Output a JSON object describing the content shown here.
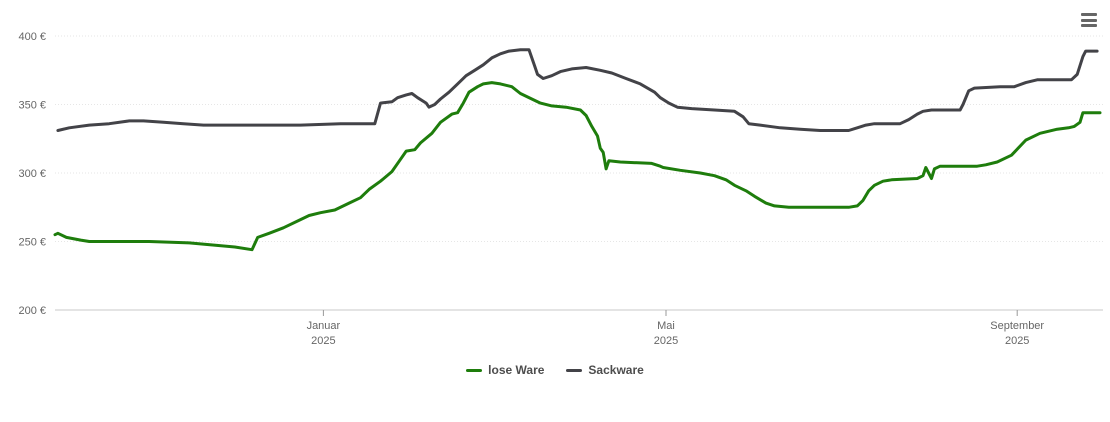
{
  "context_menu": {
    "icon": "hamburger",
    "color": "#666666"
  },
  "chart_data": {
    "type": "line",
    "title": "",
    "x_domain": [
      "2024-09-29",
      "2025-09-30"
    ],
    "ylim": [
      200,
      400
    ],
    "grid": "dotted horizontal gridlines",
    "legend_position": "bottom-center",
    "colors": {
      "grid": "#e6e6e6",
      "axis_line": "#c9c9c9",
      "tick": "#999999",
      "axis_text": "#666666",
      "legend_text": "#4d4d4d"
    },
    "y_ticks": [
      {
        "value": 200,
        "label": "200 €"
      },
      {
        "value": 250,
        "label": "250 €"
      },
      {
        "value": 300,
        "label": "300 €"
      },
      {
        "value": 350,
        "label": "350 €"
      },
      {
        "value": 400,
        "label": "400 €"
      }
    ],
    "x_ticks": [
      {
        "date": "2025-01-01",
        "label": "Januar",
        "year": "2025"
      },
      {
        "date": "2025-05-01",
        "label": "Mai",
        "year": "2025"
      },
      {
        "date": "2025-09-01",
        "label": "September",
        "year": "2025"
      }
    ],
    "series": [
      {
        "name": "lose Ware",
        "color": "#1e7d0c",
        "points": [
          [
            "2024-09-29",
            255
          ],
          [
            "2024-09-30",
            256
          ],
          [
            "2024-10-03",
            253
          ],
          [
            "2024-10-08",
            251
          ],
          [
            "2024-10-11",
            250
          ],
          [
            "2024-11-01",
            250
          ],
          [
            "2024-11-15",
            249
          ],
          [
            "2024-12-01",
            246
          ],
          [
            "2024-12-07",
            244
          ],
          [
            "2024-12-09",
            253
          ],
          [
            "2024-12-13",
            256
          ],
          [
            "2024-12-18",
            260
          ],
          [
            "2024-12-24",
            266
          ],
          [
            "2024-12-27",
            269
          ],
          [
            "2024-12-31",
            271
          ],
          [
            "2025-01-05",
            273
          ],
          [
            "2025-01-10",
            278
          ],
          [
            "2025-01-14",
            282
          ],
          [
            "2025-01-17",
            288
          ],
          [
            "2025-01-21",
            294
          ],
          [
            "2025-01-25",
            301
          ],
          [
            "2025-01-28",
            310
          ],
          [
            "2025-01-30",
            316
          ],
          [
            "2025-02-02",
            317
          ],
          [
            "2025-02-04",
            322
          ],
          [
            "2025-02-08",
            329
          ],
          [
            "2025-02-11",
            337
          ],
          [
            "2025-02-15",
            343
          ],
          [
            "2025-02-17",
            344
          ],
          [
            "2025-02-19",
            351
          ],
          [
            "2025-02-21",
            359
          ],
          [
            "2025-02-24",
            363
          ],
          [
            "2025-02-26",
            365
          ],
          [
            "2025-03-01",
            366
          ],
          [
            "2025-03-04",
            365
          ],
          [
            "2025-03-08",
            363
          ],
          [
            "2025-03-11",
            358
          ],
          [
            "2025-03-15",
            354
          ],
          [
            "2025-03-18",
            351
          ],
          [
            "2025-03-22",
            349
          ],
          [
            "2025-03-27",
            348
          ],
          [
            "2025-04-01",
            346
          ],
          [
            "2025-04-03",
            342
          ],
          [
            "2025-04-05",
            334
          ],
          [
            "2025-04-07",
            327
          ],
          [
            "2025-04-08",
            318
          ],
          [
            "2025-04-09",
            315
          ],
          [
            "2025-04-10",
            303
          ],
          [
            "2025-04-11",
            309
          ],
          [
            "2025-04-15",
            308
          ],
          [
            "2025-04-26",
            307
          ],
          [
            "2025-04-29",
            305
          ],
          [
            "2025-04-30",
            304
          ],
          [
            "2025-05-06",
            302
          ],
          [
            "2025-05-13",
            300
          ],
          [
            "2025-05-18",
            298
          ],
          [
            "2025-05-22",
            295
          ],
          [
            "2025-05-25",
            291
          ],
          [
            "2025-05-29",
            287
          ],
          [
            "2025-06-01",
            283
          ],
          [
            "2025-06-05",
            278
          ],
          [
            "2025-06-08",
            276
          ],
          [
            "2025-06-13",
            275
          ],
          [
            "2025-07-04",
            275
          ],
          [
            "2025-07-07",
            276
          ],
          [
            "2025-07-09",
            280
          ],
          [
            "2025-07-11",
            287
          ],
          [
            "2025-07-13",
            291
          ],
          [
            "2025-07-16",
            294
          ],
          [
            "2025-07-19",
            295
          ],
          [
            "2025-07-28",
            296
          ],
          [
            "2025-07-30",
            298
          ],
          [
            "2025-07-31",
            304
          ],
          [
            "2025-08-02",
            296
          ],
          [
            "2025-08-03",
            303
          ],
          [
            "2025-08-05",
            305
          ],
          [
            "2025-08-18",
            305
          ],
          [
            "2025-08-21",
            306
          ],
          [
            "2025-08-25",
            308
          ],
          [
            "2025-08-30",
            313
          ],
          [
            "2025-09-04",
            324
          ],
          [
            "2025-09-09",
            329
          ],
          [
            "2025-09-15",
            332
          ],
          [
            "2025-09-19",
            333
          ],
          [
            "2025-09-21",
            334
          ],
          [
            "2025-09-23",
            337
          ],
          [
            "2025-09-24",
            344
          ],
          [
            "2025-09-30",
            344
          ]
        ]
      },
      {
        "name": "Sackware",
        "color": "#434348",
        "points": [
          [
            "2024-09-30",
            331
          ],
          [
            "2024-10-04",
            333
          ],
          [
            "2024-10-11",
            335
          ],
          [
            "2024-10-18",
            336
          ],
          [
            "2024-10-25",
            338
          ],
          [
            "2024-10-30",
            338
          ],
          [
            "2024-11-06",
            337
          ],
          [
            "2024-11-13",
            336
          ],
          [
            "2024-11-20",
            335
          ],
          [
            "2024-12-01",
            335
          ],
          [
            "2024-12-24",
            335
          ],
          [
            "2025-01-07",
            336
          ],
          [
            "2025-01-19",
            336
          ],
          [
            "2025-01-21",
            351
          ],
          [
            "2025-01-25",
            352
          ],
          [
            "2025-01-27",
            355
          ],
          [
            "2025-01-30",
            357
          ],
          [
            "2025-02-01",
            358
          ],
          [
            "2025-02-03",
            355
          ],
          [
            "2025-02-06",
            351
          ],
          [
            "2025-02-07",
            348
          ],
          [
            "2025-02-09",
            350
          ],
          [
            "2025-02-11",
            354
          ],
          [
            "2025-02-14",
            359
          ],
          [
            "2025-02-17",
            365
          ],
          [
            "2025-02-20",
            371
          ],
          [
            "2025-02-23",
            375
          ],
          [
            "2025-02-26",
            379
          ],
          [
            "2025-03-01",
            384
          ],
          [
            "2025-03-04",
            387
          ],
          [
            "2025-03-07",
            389
          ],
          [
            "2025-03-11",
            390
          ],
          [
            "2025-03-14",
            390
          ],
          [
            "2025-03-16",
            378
          ],
          [
            "2025-03-17",
            372
          ],
          [
            "2025-03-19",
            369
          ],
          [
            "2025-03-22",
            371
          ],
          [
            "2025-03-25",
            374
          ],
          [
            "2025-03-29",
            376
          ],
          [
            "2025-04-03",
            377
          ],
          [
            "2025-04-08",
            375
          ],
          [
            "2025-04-12",
            373
          ],
          [
            "2025-04-17",
            369
          ],
          [
            "2025-04-22",
            365
          ],
          [
            "2025-04-27",
            359
          ],
          [
            "2025-04-29",
            355
          ],
          [
            "2025-05-02",
            351
          ],
          [
            "2025-05-05",
            348
          ],
          [
            "2025-05-10",
            347
          ],
          [
            "2025-05-18",
            346
          ],
          [
            "2025-05-25",
            345
          ],
          [
            "2025-05-28",
            341
          ],
          [
            "2025-05-30",
            336
          ],
          [
            "2025-06-03",
            335
          ],
          [
            "2025-06-10",
            333
          ],
          [
            "2025-06-17",
            332
          ],
          [
            "2025-06-24",
            331
          ],
          [
            "2025-07-04",
            331
          ],
          [
            "2025-07-07",
            333
          ],
          [
            "2025-07-10",
            335
          ],
          [
            "2025-07-13",
            336
          ],
          [
            "2025-07-22",
            336
          ],
          [
            "2025-07-25",
            339
          ],
          [
            "2025-07-28",
            343
          ],
          [
            "2025-07-30",
            345
          ],
          [
            "2025-08-02",
            346
          ],
          [
            "2025-08-12",
            346
          ],
          [
            "2025-08-13",
            350
          ],
          [
            "2025-08-15",
            360
          ],
          [
            "2025-08-17",
            362
          ],
          [
            "2025-08-26",
            363
          ],
          [
            "2025-08-31",
            363
          ],
          [
            "2025-09-04",
            366
          ],
          [
            "2025-09-08",
            368
          ],
          [
            "2025-09-20",
            368
          ],
          [
            "2025-09-22",
            372
          ],
          [
            "2025-09-24",
            385
          ],
          [
            "2025-09-25",
            389
          ],
          [
            "2025-09-29",
            389
          ]
        ]
      }
    ]
  }
}
